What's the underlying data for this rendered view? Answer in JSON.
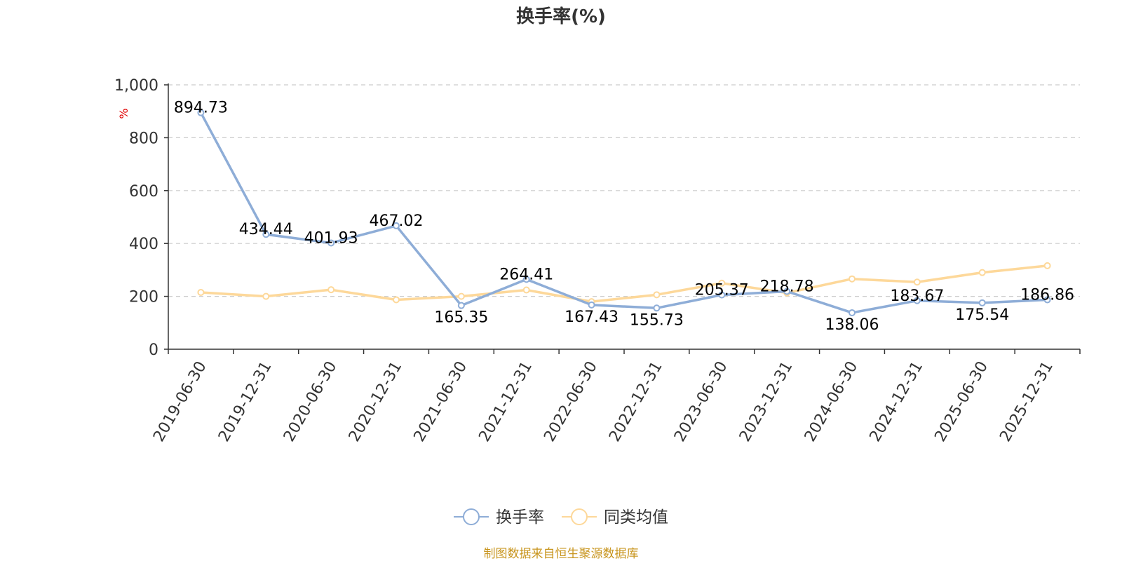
{
  "chart_data": {
    "type": "line",
    "title": "换手率(%)",
    "ylabel": "%",
    "ylim": [
      0,
      1000
    ],
    "yticks": [
      "0",
      "200",
      "400",
      "600",
      "800",
      "1,000"
    ],
    "yticks_values": [
      0,
      200,
      400,
      600,
      800,
      1000
    ],
    "grid": true,
    "legend_position": "bottom",
    "categories": [
      "2019-06-30",
      "2019-12-31",
      "2020-06-30",
      "2020-12-31",
      "2021-06-30",
      "2021-12-31",
      "2022-06-30",
      "2022-12-31",
      "2023-06-30",
      "2023-12-31",
      "2024-06-30",
      "2024-12-31",
      "2025-06-30",
      "2025-12-31"
    ],
    "series": [
      {
        "name": "换手率",
        "color": "#8eadd7",
        "values": [
          894.73,
          434.44,
          401.93,
          467.02,
          165.35,
          264.41,
          167.43,
          155.73,
          205.37,
          218.78,
          138.06,
          183.67,
          175.54,
          186.86
        ],
        "labels": [
          "894.73",
          "434.44",
          "401.93",
          "467.02",
          "165.35",
          "264.41",
          "167.43",
          "155.73",
          "205.37",
          "218.78",
          "138.06",
          "183.67",
          "175.54",
          "186.86"
        ]
      },
      {
        "name": "同类均值",
        "color": "#fdd89a",
        "values": [
          215,
          200,
          225,
          187,
          200,
          224,
          180,
          206,
          250,
          213,
          266,
          254,
          290,
          316
        ]
      }
    ],
    "source": "制图数据来自恒生聚源数据库",
    "source_color": "#c8951e"
  }
}
